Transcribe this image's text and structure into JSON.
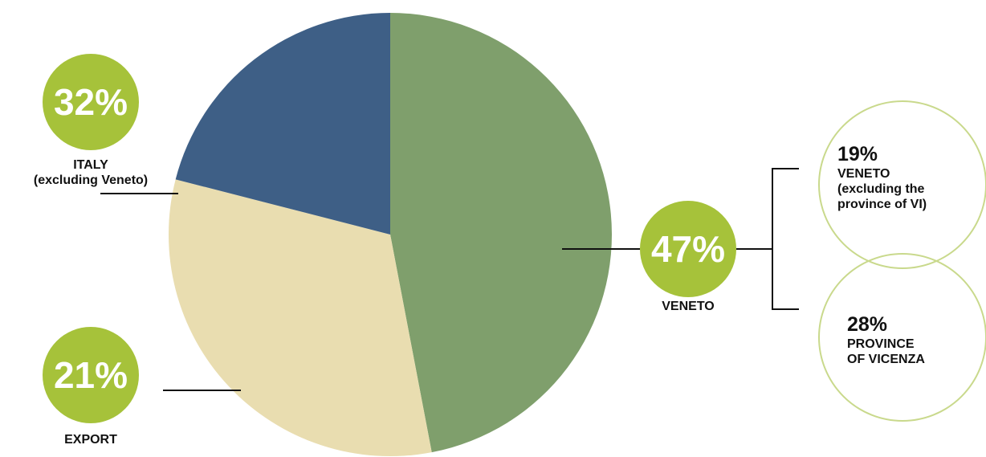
{
  "chart_data": {
    "type": "pie",
    "categories": [
      "VENETO",
      "ITALY\n(excluding Veneto)",
      "EXPORT"
    ],
    "values": [
      47,
      32,
      21
    ],
    "value_labels": [
      "47%",
      "32%",
      "21%"
    ],
    "colors": [
      "#7f9f6c",
      "#e9ddb0",
      "#3e5f86"
    ],
    "label_color": "#a6c23a",
    "breakdown": {
      "categories": [
        "VENETO\n(excluding the\nprovince of VI)",
        "PROVINCE\nOF VICENZA"
      ],
      "values": [
        19,
        28
      ],
      "value_labels": [
        "19%",
        "28%"
      ],
      "color": "#c9d98c"
    }
  }
}
